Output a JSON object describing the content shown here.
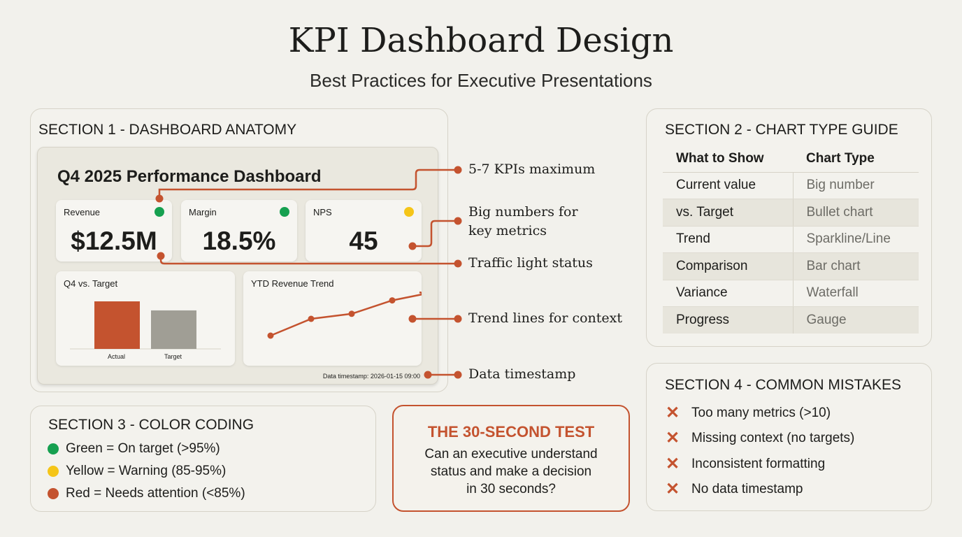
{
  "header": {
    "title": "KPI Dashboard Design",
    "subtitle": "Best Practices for Executive Presentations"
  },
  "colors": {
    "accent": "#c4532f",
    "green": "#16a050",
    "yellow": "#f5c518",
    "red": "#c4532f",
    "gray_bar": "#a09e95"
  },
  "section1": {
    "title": "SECTION 1 - DASHBOARD ANATOMY",
    "dashboard_title": "Q4 2025 Performance Dashboard",
    "kpis": [
      {
        "label": "Revenue",
        "value": "$12.5M",
        "status": "green"
      },
      {
        "label": "Margin",
        "value": "18.5%",
        "status": "green"
      },
      {
        "label": "NPS",
        "value": "45",
        "status": "yellow"
      }
    ],
    "bar_chart": {
      "title": "Q4 vs. Target",
      "categories": [
        "Actual",
        "Target"
      ],
      "values": [
        100,
        81
      ]
    },
    "trend_chart": {
      "title": "YTD Revenue Trend",
      "values": [
        10,
        30,
        36,
        52,
        60
      ]
    },
    "timestamp": "Data timestamp: 2026-01-15 09:00",
    "callouts": [
      "5-7 KPIs maximum",
      "Big numbers for",
      "key metrics",
      "Traffic light status",
      "Trend lines for context",
      "Data timestamp"
    ]
  },
  "section2": {
    "title": "SECTION 2 - CHART TYPE GUIDE",
    "headers": [
      "What to Show",
      "Chart Type"
    ],
    "rows": [
      [
        "Current value",
        "Big number"
      ],
      [
        "vs. Target",
        "Bullet chart"
      ],
      [
        "Trend",
        "Sparkline/Line"
      ],
      [
        "Comparison",
        "Bar chart"
      ],
      [
        "Variance",
        "Waterfall"
      ],
      [
        "Progress",
        "Gauge"
      ]
    ]
  },
  "section3": {
    "title": "SECTION 3 - COLOR CODING",
    "items": [
      "Green = On target (>95%)",
      "Yellow = Warning (85-95%)",
      "Red = Needs attention (<85%)"
    ]
  },
  "test": {
    "title": "THE 30-SECOND TEST",
    "lines": [
      "Can an executive understand",
      "status and make a decision",
      "in 30 seconds?"
    ]
  },
  "section4": {
    "title": "SECTION 4 - COMMON MISTAKES",
    "items": [
      "Too many metrics (>10)",
      "Missing context (no targets)",
      "Inconsistent formatting",
      "No data timestamp"
    ]
  }
}
